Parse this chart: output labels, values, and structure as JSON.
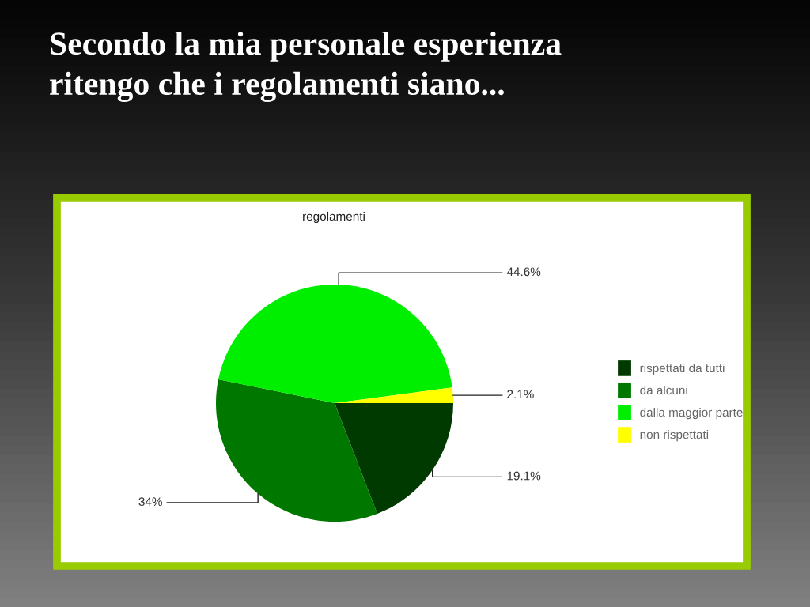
{
  "chart_data": {
    "type": "pie",
    "title": "Secondo la mia personale esperienza\nritengo che i regolamenti siano...",
    "subtitle": "regolamenti",
    "categories": [
      "rispettati da tutti",
      "da alcuni",
      "dalla maggior parte",
      "non rispettati"
    ],
    "values": [
      19.1,
      34,
      44.6,
      2.1
    ],
    "colors": [
      "#003a00",
      "#007800",
      "#00ee00",
      "#ffff00"
    ],
    "value_labels": [
      "19.1%",
      "34%",
      "44.6%",
      "2.1%"
    ],
    "legend": "right"
  }
}
